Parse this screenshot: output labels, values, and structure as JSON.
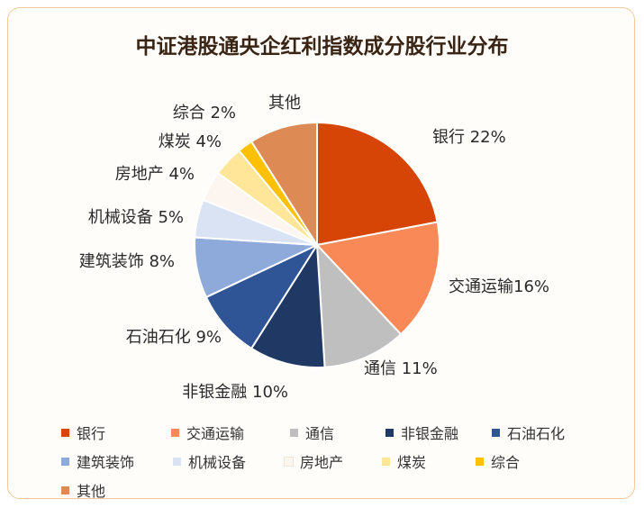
{
  "title": "中证港股通央企红利指数成分股行业分布",
  "chart_data": {
    "type": "pie",
    "title": "中证港股通央企红利指数成分股行业分布",
    "slices": [
      {
        "label": "银行",
        "value": 22,
        "display": "银行 22%",
        "color": "#d64406"
      },
      {
        "label": "交通运输",
        "value": 16,
        "display": "交通运输16%",
        "color": "#f98957"
      },
      {
        "label": "通信",
        "value": 11,
        "display": "通信 11%",
        "color": "#bfbfbf"
      },
      {
        "label": "非银金融",
        "value": 10,
        "display": "非银金融 10%",
        "color": "#1f3864"
      },
      {
        "label": "石油石化",
        "value": 9,
        "display": "石油石化 9%",
        "color": "#2f5597"
      },
      {
        "label": "建筑装饰",
        "value": 8,
        "display": "建筑装饰 8%",
        "color": "#8eaadb"
      },
      {
        "label": "机械设备",
        "value": 5,
        "display": "机械设备 5%",
        "color": "#dae3f3"
      },
      {
        "label": "房地产",
        "value": 4,
        "display": "房地产 4%",
        "color": "#fdf6f0"
      },
      {
        "label": "煤炭",
        "value": 4,
        "display": "煤炭 4%",
        "color": "#ffe699"
      },
      {
        "label": "综合",
        "value": 2,
        "display": "综合 2%",
        "color": "#ffc000"
      },
      {
        "label": "其他",
        "value": 9,
        "display": "其他",
        "color": "#dd8a55"
      }
    ],
    "legend_position": "bottom"
  }
}
